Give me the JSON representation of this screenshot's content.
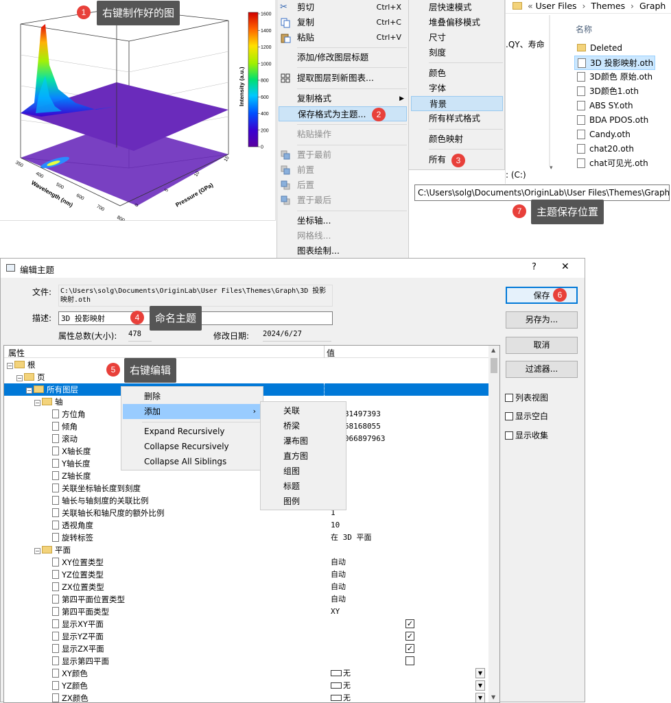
{
  "colors": {
    "accent": "#0078d7",
    "badge": "#e8403a",
    "tooltip": "#555555",
    "selection": "#0078d7",
    "menu_highlight": "#cce4f7"
  },
  "chart": {
    "colorbar_label": "Intensity (a.u.)",
    "colorbar_ticks": [
      "1600",
      "1400",
      "1200",
      "1000",
      "800",
      "600",
      "400",
      "200",
      "0"
    ],
    "x_label": "Wavelength (nm)",
    "x_ticks": [
      "350",
      "400",
      "500",
      "600",
      "700",
      "800"
    ],
    "y_label": "Pressure (GPa)",
    "y_ticks": [
      "0",
      "5",
      "10",
      "15"
    ]
  },
  "chart_data": {
    "type": "surface-3d",
    "xlabel": "Wavelength (nm)",
    "ylabel": "Pressure (GPa)",
    "zlabel": "Intensity (a.u.)",
    "xlim": [
      350,
      800
    ],
    "ylim": [
      0,
      15
    ],
    "zlim": [
      0,
      1600
    ],
    "x_ticks": [
      350,
      400,
      500,
      600,
      700,
      800
    ],
    "y_ticks": [
      0,
      5,
      10,
      15
    ],
    "colorbar_ticks": [
      0,
      200,
      400,
      600,
      800,
      1000,
      1200,
      1400,
      1600
    ],
    "colormap": "rainbow"
  },
  "annotations": [
    {
      "n": "1",
      "text": "右键制作好的图"
    },
    {
      "n": "2",
      "text": ""
    },
    {
      "n": "3",
      "text": ""
    },
    {
      "n": "4",
      "text": "命名主题"
    },
    {
      "n": "5",
      "text": "右键编辑"
    },
    {
      "n": "6",
      "text": ""
    },
    {
      "n": "7",
      "text": "主题保存位置"
    }
  ],
  "context_menu": {
    "items": [
      {
        "label": "剪切",
        "shortcut": "Ctrl+X"
      },
      {
        "label": "复制",
        "shortcut": "Ctrl+C"
      },
      {
        "label": "粘贴",
        "shortcut": "Ctrl+V"
      },
      {
        "label": "添加/修改图层标题"
      },
      {
        "label": "提取图层到新图表..."
      },
      {
        "label": "复制格式"
      },
      {
        "label": "保存格式为主题..."
      },
      {
        "label": "粘贴操作"
      },
      {
        "label": "置于最前"
      },
      {
        "label": "前置"
      },
      {
        "label": "后置"
      },
      {
        "label": "置于最后"
      },
      {
        "label": "坐标轴..."
      },
      {
        "label": "网格线..."
      },
      {
        "label": "图表绘制..."
      }
    ]
  },
  "theme_submenu": {
    "items": [
      "层快速模式",
      "堆叠偏移模式",
      "尺寸",
      "刻度",
      "颜色",
      "字体",
      "背景",
      "所有样式格式",
      "颜色映射",
      "所有"
    ]
  },
  "explorer": {
    "breadcrumb": [
      "«",
      "User Files",
      "›",
      "Themes",
      "›",
      "Graph"
    ],
    "column_header": "名称",
    "partial_text": ".QY、寿命",
    "drive_text": ": (C:)",
    "files": [
      "Deleted",
      "3D 投影映射.oth",
      "3D颜色 原始.oth",
      "3D颜色1.oth",
      "ABS SY.oth",
      "BDA PDOS.oth",
      "Candy.oth",
      "chat20.oth",
      "chat可见光.oth"
    ],
    "path": "C:\\Users\\solg\\Documents\\OriginLab\\User Files\\Themes\\Graph"
  },
  "dialog": {
    "title": "编辑主题",
    "help": "?",
    "close": "✕",
    "file_label": "文件:",
    "file_value": "C:\\Users\\solg\\Documents\\OriginLab\\User Files\\Themes\\Graph\\3D 投影映射.oth",
    "desc_label": "描述:",
    "desc_value": "3D 投影映射",
    "count_label": "属性总数(大小):",
    "count_value": "478",
    "date_label": "修改日期:",
    "date_value": "2024/6/27",
    "col_property": "属性",
    "col_value": "值",
    "tree": [
      {
        "t": "根",
        "v": ""
      },
      {
        "t": "页",
        "v": ""
      },
      {
        "t": "所有图层",
        "v": ""
      },
      {
        "t": "轴",
        "v": ""
      },
      {
        "t": "方位角",
        "v": "75681497393"
      },
      {
        "t": "倾角",
        "v": "78668168055"
      },
      {
        "t": "滚动",
        "v": "792066897963"
      },
      {
        "t": "X轴长度",
        "v": ""
      },
      {
        "t": "Y轴长度",
        "v": ""
      },
      {
        "t": "Z轴长度",
        "v": ""
      },
      {
        "t": "关联坐标轴长度到刻度",
        "v": ""
      },
      {
        "t": "轴长与轴刻度的关联比例",
        "v": ""
      },
      {
        "t": "关联轴长和轴尺度的额外比例",
        "v": "1"
      },
      {
        "t": "透视角度",
        "v": "10"
      },
      {
        "t": "旋转标签",
        "v": "在 3D 平面"
      },
      {
        "t": "平面",
        "v": ""
      },
      {
        "t": "XY位置类型",
        "v": "自动"
      },
      {
        "t": "YZ位置类型",
        "v": "自动"
      },
      {
        "t": "ZX位置类型",
        "v": "自动"
      },
      {
        "t": "第四平面位置类型",
        "v": "自动"
      },
      {
        "t": "第四平面类型",
        "v": "XY"
      },
      {
        "t": "显示XY平面",
        "v": ""
      },
      {
        "t": "显示YZ平面",
        "v": ""
      },
      {
        "t": "显示ZX平面",
        "v": ""
      },
      {
        "t": "显示第四平面",
        "v": ""
      },
      {
        "t": "XY颜色",
        "v": "无"
      },
      {
        "t": "YZ颜色",
        "v": "无"
      },
      {
        "t": "ZX颜色",
        "v": "无"
      }
    ],
    "buttons": {
      "save": "保存",
      "save_as": "另存为...",
      "cancel": "取消",
      "filter": "过滤器..."
    },
    "options": [
      "列表视图",
      "显示空白",
      "显示收集"
    ]
  },
  "tree_context_menu": {
    "items": [
      "删除",
      "添加",
      "Expand Recursively",
      "Collapse Recursively",
      "Collapse All Siblings"
    ]
  },
  "add_submenu": {
    "items": [
      "关联",
      "桥梁",
      "瀑布图",
      "直方图",
      "组图",
      "标题",
      "图例"
    ]
  }
}
